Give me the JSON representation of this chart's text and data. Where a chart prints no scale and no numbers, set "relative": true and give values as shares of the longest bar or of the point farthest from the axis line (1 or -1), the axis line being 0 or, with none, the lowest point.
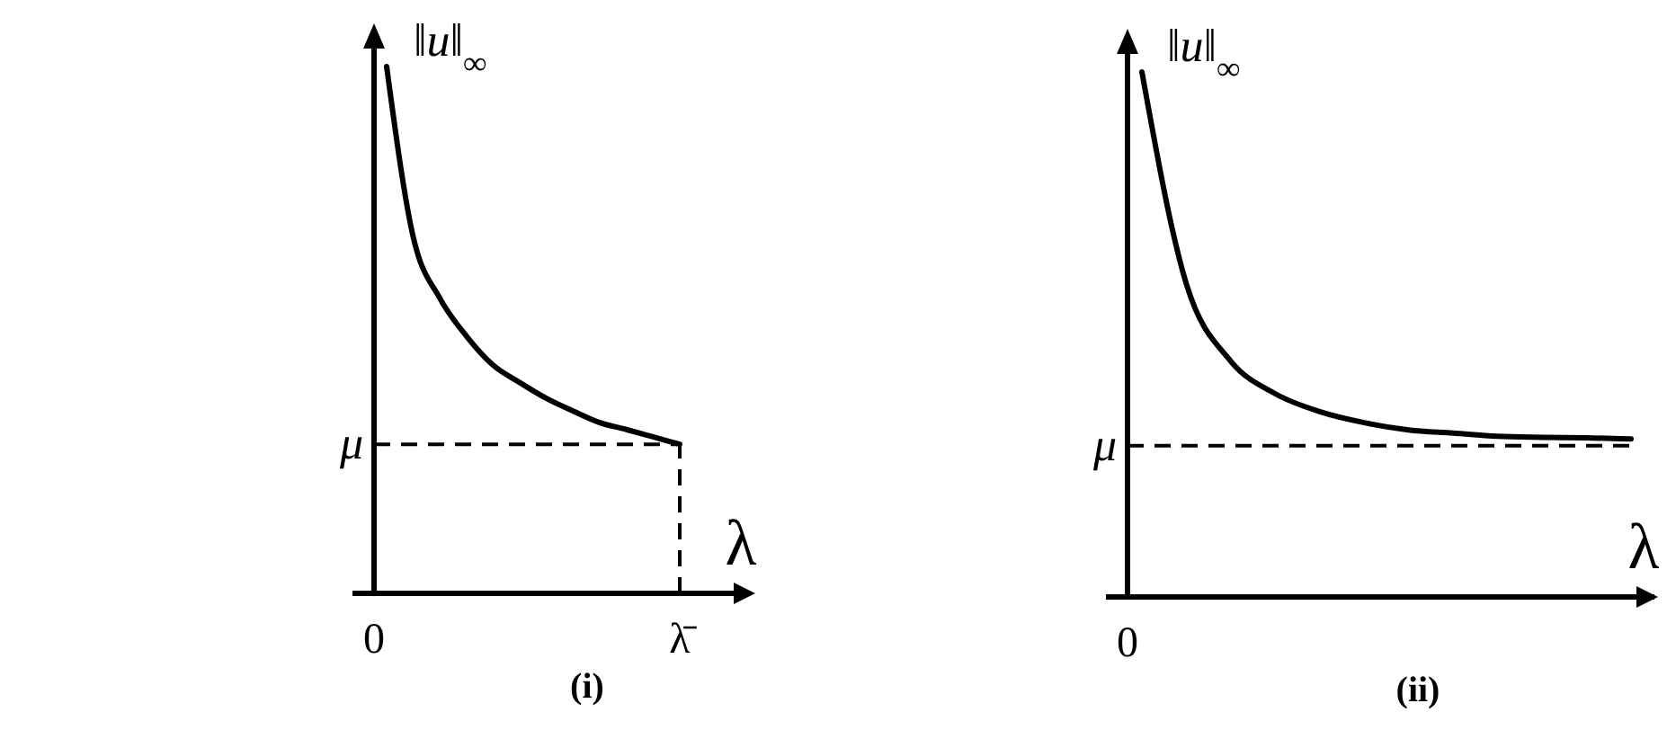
{
  "chart_data": [
    {
      "type": "line",
      "title": "(i)",
      "xlabel": "λ",
      "ylabel": "‖u‖$_{∞}$",
      "relative": true,
      "categories": [
        null,
        null,
        null,
        null,
        null,
        null,
        null,
        null,
        null,
        null,
        null,
        null
      ],
      "series": [
        {
          "color": "#000000",
          "values": [
            1.0,
            0.676,
            0.56,
            0.488,
            0.433,
            0.4,
            0.37,
            0.346,
            0.324,
            0.311,
            0.297,
            0.283
          ]
        }
      ],
      "ref_lines": [
        {
          "axis": "y",
          "value": 0.283,
          "label": "μ",
          "line_style": "dashed"
        }
      ],
      "annotations": [
        "0",
        {
          "text": "λ̄",
          "y": 0.283
        }
      ]
    },
    {
      "type": "line",
      "title": "(ii)",
      "xlabel": "λ",
      "ylabel": "‖u‖$_{∞}$",
      "relative": true,
      "categories": [
        null,
        null,
        null,
        null,
        null,
        null,
        null,
        null,
        null,
        null,
        null,
        null
      ],
      "series": [
        {
          "color": "#000000",
          "values": [
            1.0,
            0.596,
            0.449,
            0.387,
            0.353,
            0.332,
            0.318,
            0.312,
            0.306,
            0.304,
            0.303,
            0.301
          ]
        }
      ],
      "ref_lines": [
        {
          "axis": "y",
          "value": 0.288,
          "label": "μ",
          "line_style": "dashed"
        }
      ],
      "annotations": [
        "0"
      ]
    }
  ]
}
